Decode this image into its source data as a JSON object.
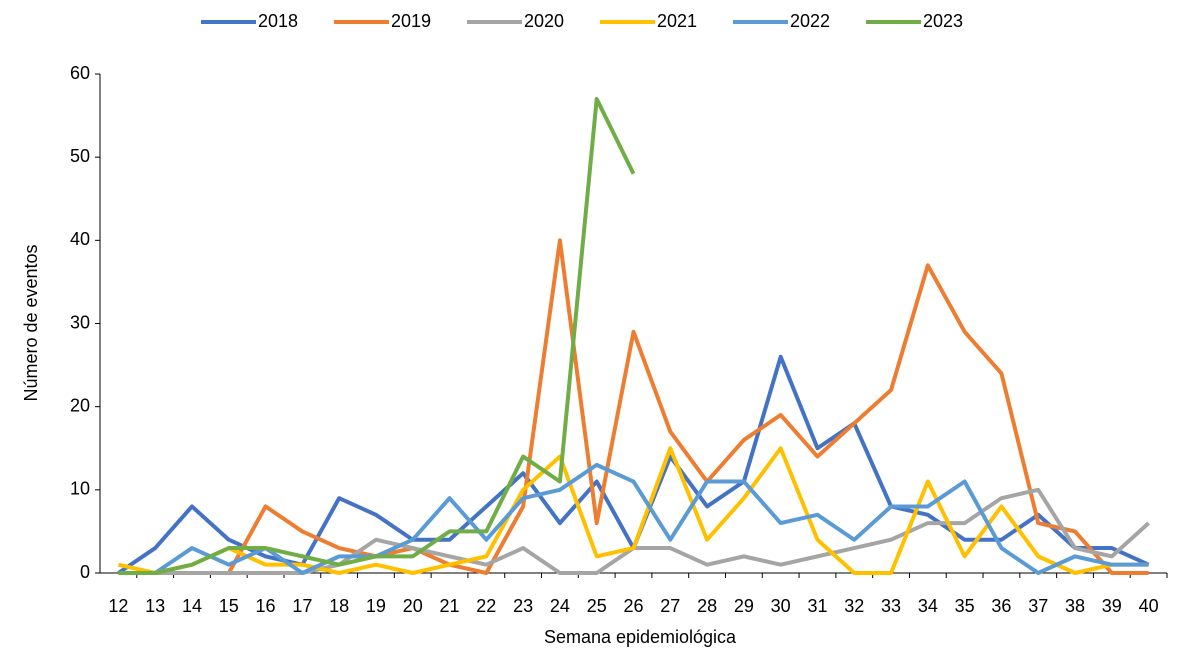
{
  "chart_data": {
    "type": "line",
    "x_label": "Semana epidemiológica",
    "y_label": "Número de eventos",
    "categories": [
      12,
      13,
      14,
      15,
      16,
      17,
      18,
      19,
      20,
      21,
      22,
      23,
      24,
      25,
      26,
      27,
      28,
      29,
      30,
      31,
      32,
      33,
      34,
      35,
      36,
      37,
      38,
      39,
      40
    ],
    "ylim": [
      0,
      60
    ],
    "yticks": [
      0,
      10,
      20,
      30,
      40,
      50,
      60
    ],
    "legend": "top",
    "series": [
      {
        "name": "2018",
        "color": "#4472c4",
        "values": [
          0,
          3,
          8,
          4,
          2,
          1,
          9,
          7,
          4,
          4,
          8,
          12,
          6,
          11,
          3,
          14,
          8,
          11,
          26,
          15,
          18,
          8,
          7,
          4,
          4,
          7,
          3,
          3,
          1
        ]
      },
      {
        "name": "2019",
        "color": "#ed7d31",
        "values": [
          0,
          0,
          0,
          0,
          8,
          5,
          3,
          2,
          3,
          1,
          0,
          8,
          40,
          6,
          29,
          17,
          11,
          16,
          19,
          14,
          18,
          22,
          37,
          29,
          24,
          6,
          5,
          0,
          0
        ]
      },
      {
        "name": "2020",
        "color": "#a5a5a5",
        "values": [
          0,
          0,
          0,
          0,
          0,
          0,
          1,
          4,
          3,
          2,
          1,
          3,
          0,
          0,
          3,
          3,
          1,
          2,
          1,
          2,
          3,
          4,
          6,
          6,
          9,
          10,
          3,
          2,
          6
        ]
      },
      {
        "name": "2021",
        "color": "#ffc000",
        "values": [
          1,
          0,
          1,
          3,
          1,
          1,
          0,
          1,
          0,
          1,
          2,
          10,
          14,
          2,
          3,
          15,
          4,
          9,
          15,
          4,
          0,
          0,
          11,
          2,
          8,
          2,
          0,
          1,
          1
        ]
      },
      {
        "name": "2022",
        "color": "#5b9bd5",
        "values": [
          0,
          0,
          3,
          1,
          3,
          0,
          2,
          2,
          4,
          9,
          4,
          9,
          10,
          13,
          11,
          4,
          11,
          11,
          6,
          7,
          4,
          8,
          8,
          11,
          3,
          0,
          2,
          1,
          1
        ]
      },
      {
        "name": "2023",
        "color": "#70ad47",
        "values": [
          0,
          0,
          1,
          3,
          3,
          2,
          1,
          2,
          2,
          5,
          5,
          14,
          11,
          57,
          48,
          null,
          null,
          null,
          null,
          null,
          null,
          null,
          null,
          null,
          null,
          null,
          null,
          null,
          null
        ]
      }
    ]
  }
}
